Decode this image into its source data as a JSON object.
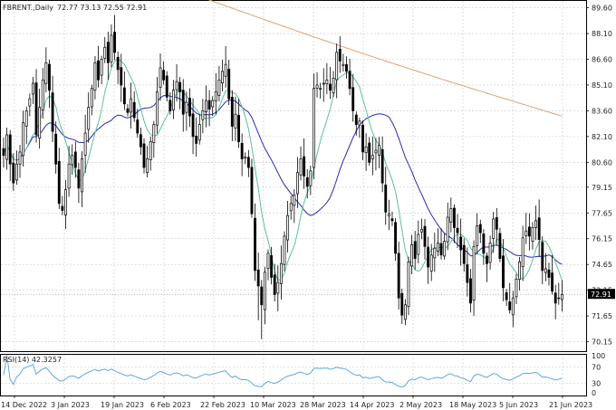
{
  "header": {
    "symbol_info": "FBRENT.,Daily",
    "ohlc": "72.77 73.13 72.55 72.91"
  },
  "rsi_panel": {
    "label": "RSI(14) 42.3257",
    "levels": [
      "100",
      "70",
      "30",
      "0"
    ]
  },
  "colors": {
    "background": "#ffffff",
    "grid": "#c8c8c8",
    "candle": "#000000",
    "ma_fast": "#5fbf9a",
    "ma_mid": "#2b2bb0",
    "ma_slow": "#d9a37a",
    "rsi": "#5ea8e0",
    "price_tag_bg": "#000000",
    "price_tag_text": "#ffffff"
  },
  "chart_data": {
    "type": "candlestick",
    "title": "",
    "current_price": "72.91",
    "price_axis": {
      "ticks": [
        "89.60",
        "88.10",
        "86.60",
        "85.10",
        "83.60",
        "82.10",
        "80.60",
        "79.15",
        "77.65",
        "76.15",
        "74.65",
        "73.15",
        "71.65",
        "70.15"
      ],
      "ylim": [
        69.6,
        90.0
      ]
    },
    "date_axis": {
      "ticks": [
        "14 Dec 2022",
        "3 Jan 2023",
        "19 Jan 2023",
        "6 Feb 2023",
        "22 Feb 2023",
        "10 Mar 2023",
        "28 Mar 2023",
        "14 Apr 2023",
        "2 May 2023",
        "18 May 2023",
        "5 Jun 2023",
        "21 Jun 2023"
      ]
    },
    "close_prices": [
      81.0,
      82.2,
      80.5,
      79.4,
      80.5,
      81.2,
      82.9,
      83.6,
      84.3,
      85.2,
      82.2,
      83.8,
      85.4,
      86.4,
      84.8,
      82.4,
      80.5,
      78.2,
      77.8,
      79.0,
      80.5,
      81.0,
      80.3,
      79.1,
      80.8,
      82.3,
      83.8,
      84.9,
      86.4,
      85.4,
      86.6,
      87.3,
      86.4,
      88.0,
      87.0,
      86.0,
      85.1,
      84.0,
      83.5,
      84.3,
      83.2,
      82.3,
      81.5,
      80.3,
      80.8,
      81.8,
      82.8,
      84.7,
      86.1,
      85.4,
      84.4,
      83.6,
      84.8,
      85.3,
      84.7,
      83.4,
      84.1,
      83.3,
      82.1,
      81.7,
      82.8,
      83.6,
      84.2,
      83.7,
      84.2,
      84.7,
      85.4,
      85.9,
      86.3,
      84.3,
      82.7,
      83.4,
      81.8,
      80.8,
      80.9,
      80.3,
      77.6,
      74.3,
      73.4,
      72.3,
      74.2,
      75.3,
      73.9,
      72.9,
      73.6,
      74.7,
      76.3,
      77.5,
      78.2,
      78.7,
      80.0,
      80.8,
      79.8,
      79.2,
      80.1,
      84.9,
      85.1,
      84.9,
      85.2,
      85.4,
      84.8,
      85.5,
      87.0,
      86.5,
      86.3,
      85.9,
      84.9,
      83.6,
      82.8,
      83.0,
      81.2,
      81.5,
      80.6,
      81.0,
      81.3,
      81.6,
      79.4,
      77.7,
      77.6,
      77.2,
      75.3,
      72.7,
      71.7,
      72.3,
      74.8,
      75.8,
      75.0,
      76.4,
      76.7,
      75.7,
      74.5,
      75.2,
      75.6,
      75.9,
      75.2,
      76.0,
      77.4,
      77.9,
      76.8,
      76.5,
      75.5,
      74.7,
      73.6,
      72.4,
      75.7,
      76.9,
      76.5,
      75.3,
      74.7,
      75.9,
      77.3,
      76.7,
      75.0,
      73.3,
      72.6,
      72.0,
      72.7,
      73.8,
      74.8,
      76.2,
      76.6,
      76.3,
      76.8,
      77.2,
      76.1,
      74.3,
      74.4,
      73.9,
      73.1,
      72.4,
      72.7,
      72.9
    ],
    "series": [
      {
        "values": []
      },
      {
        "values": []
      },
      {
        "values": []
      },
      {
        "values": []
      }
    ],
    "rsi": {
      "range": [
        0,
        100
      ],
      "levels": [
        30,
        70
      ],
      "last_value": 42.3257
    }
  }
}
